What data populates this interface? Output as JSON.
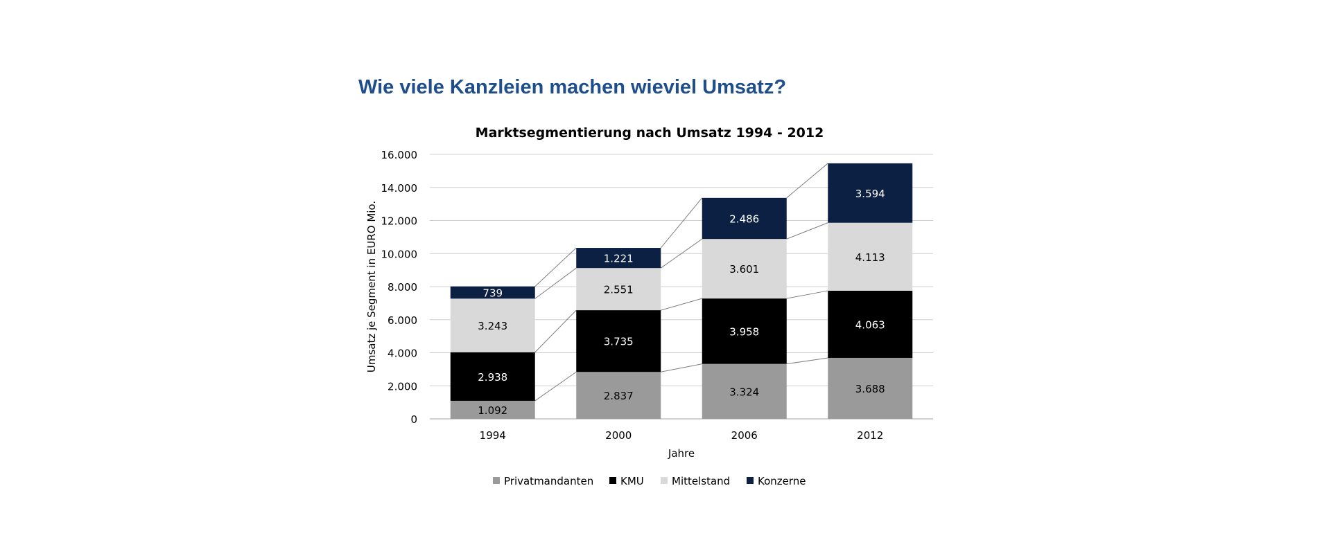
{
  "page": {
    "heading": "Wie viele Kanzleien machen wieviel Umsatz?"
  },
  "colors": {
    "heading": "#1f4e8c",
    "Privatmandanten": "#9a9a9a",
    "KMU": "#000000",
    "Mittelstand": "#d9d9d9",
    "Konzerne": "#0c2043"
  },
  "chart_data": {
    "type": "bar",
    "stacked": true,
    "title": "Marktsegmentierung nach Umsatz 1994 - 2012",
    "xlabel": "Jahre",
    "ylabel": "Umsatz je Segment in EURO Mio.",
    "ylim": [
      0,
      16000
    ],
    "yticks": [
      0,
      2000,
      4000,
      6000,
      8000,
      10000,
      12000,
      14000,
      16000
    ],
    "ytick_labels": [
      "0",
      "2.000",
      "4.000",
      "6.000",
      "8.000",
      "10.000",
      "12.000",
      "14.000",
      "16.000"
    ],
    "grid": true,
    "series_lines": true,
    "legend_position": "bottom",
    "categories": [
      "1994",
      "2000",
      "2006",
      "2012"
    ],
    "series": [
      {
        "name": "Privatmandanten",
        "values": [
          1092,
          2837,
          3324,
          3688
        ],
        "labels": [
          "1.092",
          "2.837",
          "3.324",
          "3.688"
        ]
      },
      {
        "name": "KMU",
        "values": [
          2938,
          3735,
          3958,
          4063
        ],
        "labels": [
          "2.938",
          "3.735",
          "3.958",
          "4.063"
        ]
      },
      {
        "name": "Mittelstand",
        "values": [
          3243,
          2551,
          3601,
          4113
        ],
        "labels": [
          "3.243",
          "2.551",
          "3.601",
          "4.113"
        ]
      },
      {
        "name": "Konzerne",
        "values": [
          739,
          1221,
          2486,
          3594
        ],
        "labels": [
          "739",
          "1.221",
          "2.486",
          "3.594"
        ]
      }
    ]
  }
}
